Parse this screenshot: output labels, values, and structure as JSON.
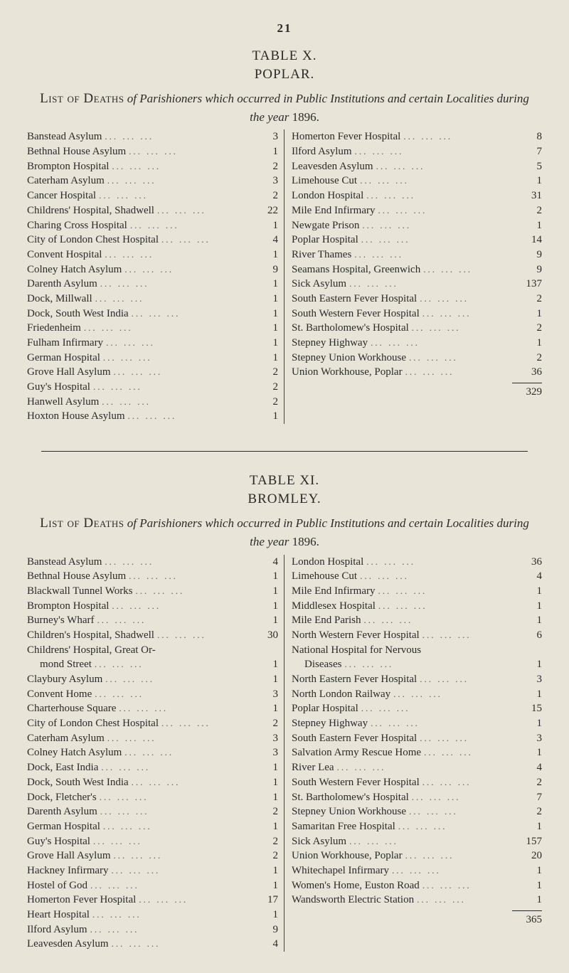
{
  "page_number": "21",
  "table1": {
    "label": "TABLE X.",
    "town": "POPLAR.",
    "heading_lead": "List of Deaths",
    "heading_italic": "of Parishioners which occurred in Public Institutions and certain Localities during the year",
    "heading_year": "1896.",
    "left": [
      {
        "name": "Banstead Asylum",
        "value": "3"
      },
      {
        "name": "Bethnal House Asylum",
        "value": "1"
      },
      {
        "name": "Brompton Hospital",
        "value": "2"
      },
      {
        "name": "Caterham Asylum",
        "value": "3"
      },
      {
        "name": "Cancer Hospital",
        "value": "2"
      },
      {
        "name": "Childrens' Hospital, Shadwell",
        "value": "22"
      },
      {
        "name": "Charing Cross Hospital",
        "value": "1"
      },
      {
        "name": "City of London Chest Hospital",
        "value": "4"
      },
      {
        "name": "Convent Hospital",
        "value": "1"
      },
      {
        "name": "Colney Hatch Asylum",
        "value": "9"
      },
      {
        "name": "Darenth Asylum",
        "value": "1"
      },
      {
        "name": "Dock, Millwall",
        "value": "1"
      },
      {
        "name": "Dock, South West India",
        "value": "1"
      },
      {
        "name": "Friedenheim",
        "value": "1"
      },
      {
        "name": "Fulham Infirmary",
        "value": "1"
      },
      {
        "name": "German Hospital",
        "value": "1"
      },
      {
        "name": "Grove Hall Asylum",
        "value": "2"
      },
      {
        "name": "Guy's Hospital",
        "value": "2"
      },
      {
        "name": "Hanwell Asylum",
        "value": "2"
      },
      {
        "name": "Hoxton House Asylum",
        "value": "1"
      }
    ],
    "right": [
      {
        "name": "Homerton Fever Hospital",
        "value": "8"
      },
      {
        "name": "Ilford Asylum",
        "value": "7"
      },
      {
        "name": "Leavesden Asylum",
        "value": "5"
      },
      {
        "name": "Limehouse Cut",
        "value": "1"
      },
      {
        "name": "London Hospital",
        "value": "31"
      },
      {
        "name": "Mile End Infirmary",
        "value": "2"
      },
      {
        "name": "Newgate Prison",
        "value": "1"
      },
      {
        "name": "Poplar Hospital",
        "value": "14"
      },
      {
        "name": "River Thames",
        "value": "9"
      },
      {
        "name": "Seamans Hospital, Greenwich",
        "value": "9"
      },
      {
        "name": "Sick Asylum",
        "value": "137"
      },
      {
        "name": "South Eastern Fever Hospital",
        "value": "2"
      },
      {
        "name": "South Western Fever Hospital",
        "value": "1"
      },
      {
        "name": "St. Bartholomew's Hospital",
        "value": "2"
      },
      {
        "name": "Stepney Highway",
        "value": "1"
      },
      {
        "name": "Stepney Union Workhouse",
        "value": "2"
      },
      {
        "name": "Union Workhouse, Poplar",
        "value": "36"
      }
    ],
    "total": "329"
  },
  "table2": {
    "label": "TABLE XI.",
    "town": "BROMLEY.",
    "heading_lead": "List of Deaths",
    "heading_italic": "of Parishioners which occurred in Public Institutions and certain Localities during the year",
    "heading_year": "1896.",
    "left": [
      {
        "name": "Banstead Asylum",
        "value": "4"
      },
      {
        "name": "Bethnal House Asylum",
        "value": "1"
      },
      {
        "name": "Blackwall Tunnel Works",
        "value": "1"
      },
      {
        "name": "Brompton Hospital",
        "value": "1"
      },
      {
        "name": "Burney's Wharf",
        "value": "1"
      },
      {
        "name": "Children's Hospital, Shadwell",
        "value": "30"
      },
      {
        "name": "Childrens' Hospital, Great Or-",
        "value": ""
      },
      {
        "name": "mond Street",
        "value": "1",
        "indent": true
      },
      {
        "name": "Claybury Asylum",
        "value": "1"
      },
      {
        "name": "Convent Home",
        "value": "3"
      },
      {
        "name": "Charterhouse Square",
        "value": "1"
      },
      {
        "name": "City of London Chest Hospital",
        "value": "2"
      },
      {
        "name": "Caterham Asylum",
        "value": "3"
      },
      {
        "name": "Colney Hatch Asylum",
        "value": "3"
      },
      {
        "name": "Dock, East India",
        "value": "1"
      },
      {
        "name": "Dock, South West India",
        "value": "1"
      },
      {
        "name": "Dock, Fletcher's",
        "value": "1"
      },
      {
        "name": "Darenth Asylum",
        "value": "2"
      },
      {
        "name": "German Hospital",
        "value": "1"
      },
      {
        "name": "Guy's Hospital",
        "value": "2"
      },
      {
        "name": "Grove Hall Asylum",
        "value": "2"
      },
      {
        "name": "Hackney Infirmary",
        "value": "1"
      },
      {
        "name": "Hostel of God",
        "value": "1"
      },
      {
        "name": "Homerton Fever Hospital",
        "value": "17"
      },
      {
        "name": "Heart Hospital",
        "value": "1"
      },
      {
        "name": "Ilford Asylum",
        "value": "9"
      },
      {
        "name": "Leavesden Asylum",
        "value": "4"
      }
    ],
    "right": [
      {
        "name": "London Hospital",
        "value": "36"
      },
      {
        "name": "Limehouse Cut",
        "value": "4"
      },
      {
        "name": "Mile End Infirmary",
        "value": "1"
      },
      {
        "name": "Middlesex Hospital",
        "value": "1"
      },
      {
        "name": "Mile End Parish",
        "value": "1"
      },
      {
        "name": "North Western Fever Hospital",
        "value": "6"
      },
      {
        "name": "National Hospital for Nervous",
        "value": ""
      },
      {
        "name": "Diseases",
        "value": "1",
        "indent": true
      },
      {
        "name": "North Eastern Fever Hospital",
        "value": "3"
      },
      {
        "name": "North London Railway",
        "value": "1"
      },
      {
        "name": "Poplar Hospital",
        "value": "15"
      },
      {
        "name": "Stepney Highway",
        "value": "1"
      },
      {
        "name": "South Eastern Fever Hospital",
        "value": "3"
      },
      {
        "name": "Salvation Army Rescue Home",
        "value": "1"
      },
      {
        "name": "River Lea",
        "value": "4"
      },
      {
        "name": "South Western Fever Hospital",
        "value": "2"
      },
      {
        "name": "St. Bartholomew's Hospital",
        "value": "7"
      },
      {
        "name": "Stepney Union Workhouse",
        "value": "2"
      },
      {
        "name": "Samaritan Free Hospital",
        "value": "1"
      },
      {
        "name": "Sick Asylum",
        "value": "157"
      },
      {
        "name": "Union Workhouse, Poplar",
        "value": "20"
      },
      {
        "name": "Whitechapel Infirmary",
        "value": "1"
      },
      {
        "name": "Women's Home, Euston Road",
        "value": "1"
      },
      {
        "name": "Wandsworth Electric Station",
        "value": "1"
      }
    ],
    "total": "365"
  }
}
